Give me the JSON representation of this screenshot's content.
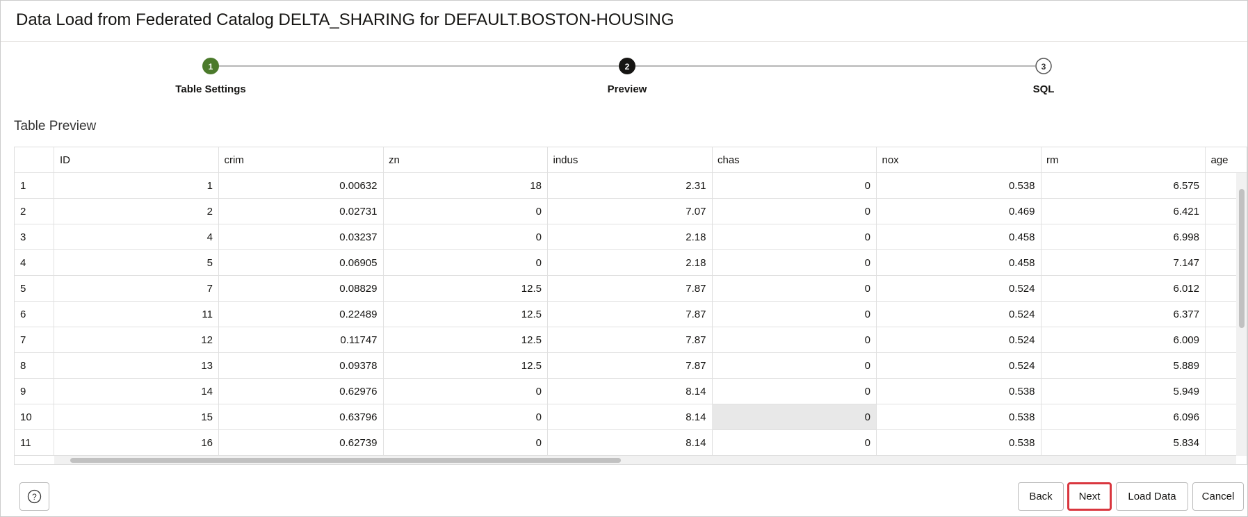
{
  "header": {
    "title": "Data Load from Federated Catalog DELTA_SHARING for DEFAULT.BOSTON-HOUSING"
  },
  "steps": [
    {
      "number": "1",
      "label": "Table Settings"
    },
    {
      "number": "2",
      "label": "Preview"
    },
    {
      "number": "3",
      "label": "SQL"
    }
  ],
  "section_title": "Table Preview",
  "table": {
    "columns": [
      "ID",
      "crim",
      "zn",
      "indus",
      "chas",
      "nox",
      "rm",
      "age"
    ],
    "rows": [
      [
        "1",
        "1",
        "0.00632",
        "18",
        "2.31",
        "0",
        "0.538",
        "6.575"
      ],
      [
        "2",
        "2",
        "0.02731",
        "0",
        "7.07",
        "0",
        "0.469",
        "6.421"
      ],
      [
        "3",
        "4",
        "0.03237",
        "0",
        "2.18",
        "0",
        "0.458",
        "6.998"
      ],
      [
        "4",
        "5",
        "0.06905",
        "0",
        "2.18",
        "0",
        "0.458",
        "7.147"
      ],
      [
        "5",
        "7",
        "0.08829",
        "12.5",
        "7.87",
        "0",
        "0.524",
        "6.012"
      ],
      [
        "6",
        "11",
        "0.22489",
        "12.5",
        "7.87",
        "0",
        "0.524",
        "6.377"
      ],
      [
        "7",
        "12",
        "0.11747",
        "12.5",
        "7.87",
        "0",
        "0.524",
        "6.009"
      ],
      [
        "8",
        "13",
        "0.09378",
        "12.5",
        "7.87",
        "0",
        "0.524",
        "5.889"
      ],
      [
        "9",
        "14",
        "0.62976",
        "0",
        "8.14",
        "0",
        "0.538",
        "5.949"
      ],
      [
        "10",
        "15",
        "0.63796",
        "0",
        "8.14",
        "0",
        "0.538",
        "6.096"
      ],
      [
        "11",
        "16",
        "0.62739",
        "0",
        "8.14",
        "0",
        "0.538",
        "5.834"
      ]
    ]
  },
  "buttons": {
    "back": "Back",
    "next": "Next",
    "load_data": "Load Data",
    "cancel": "Cancel"
  }
}
